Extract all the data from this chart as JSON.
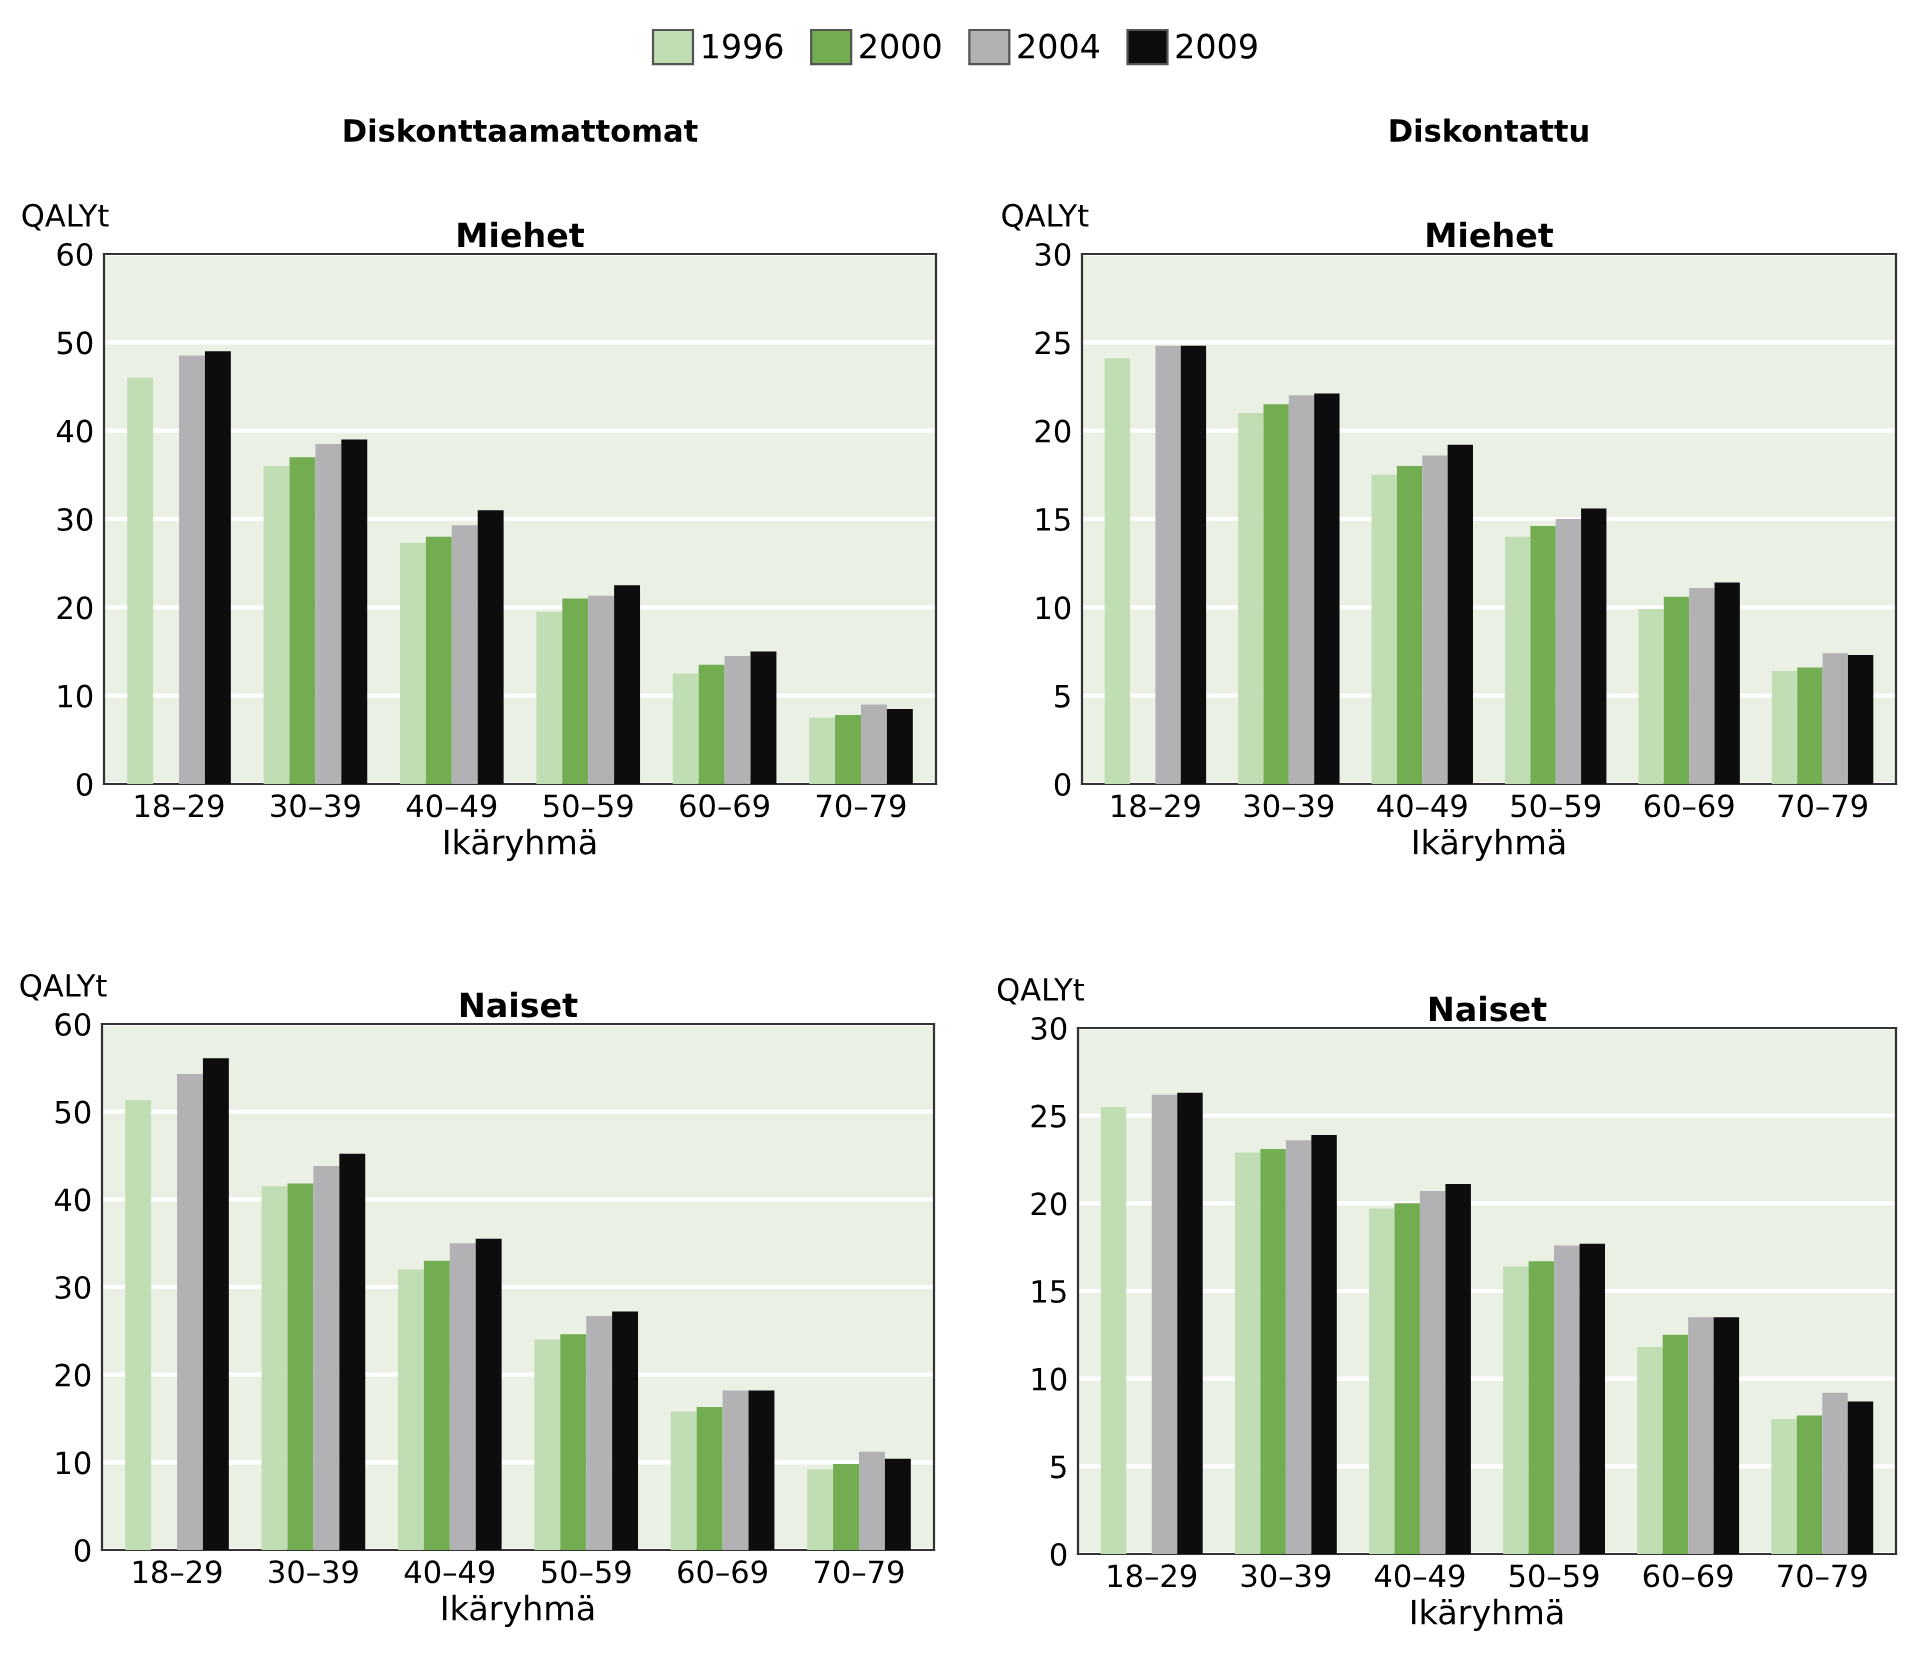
{
  "chart_data": [
    {
      "type": "bar",
      "title": "Diskonttaamattomat",
      "subtitle": "Miehet",
      "ylabel": "QALYt",
      "xlabel": "Ikäryhmä",
      "categories": [
        "18–29",
        "30–39",
        "40–49",
        "50–59",
        "60–69",
        "70–79"
      ],
      "ylim": [
        0,
        60
      ],
      "yticks": [
        0,
        10,
        20,
        30,
        40,
        50,
        60
      ],
      "grid": "y",
      "legend": "top",
      "series": [
        {
          "name": "1996",
          "color": "#c0ddb3",
          "values": [
            46,
            36,
            27.3,
            19.5,
            12.5,
            7.5
          ]
        },
        {
          "name": "2000",
          "color": "#72ad52",
          "values": [
            null,
            37,
            28,
            21,
            13.5,
            7.8
          ]
        },
        {
          "name": "2004",
          "color": "#b2b2b4",
          "values": [
            48.5,
            38.5,
            29.3,
            21.3,
            14.5,
            9
          ]
        },
        {
          "name": "2009",
          "color": "#0d0d0d",
          "values": [
            49,
            39,
            31,
            22.5,
            15,
            8.5
          ]
        }
      ]
    },
    {
      "type": "bar",
      "title": "Diskontattu",
      "subtitle": "Miehet",
      "ylabel": "QALYt",
      "xlabel": "Ikäryhmä",
      "categories": [
        "18–29",
        "30–39",
        "40–49",
        "50–59",
        "60–69",
        "70–79"
      ],
      "ylim": [
        0,
        30
      ],
      "yticks": [
        0,
        5,
        10,
        15,
        20,
        25,
        30
      ],
      "grid": "y",
      "series": [
        {
          "name": "1996",
          "color": "#c0ddb3",
          "values": [
            24.1,
            21,
            17.5,
            14,
            9.9,
            6.4
          ]
        },
        {
          "name": "2000",
          "color": "#72ad52",
          "values": [
            null,
            21.5,
            18,
            14.6,
            10.6,
            6.6
          ]
        },
        {
          "name": "2004",
          "color": "#b2b2b4",
          "values": [
            24.8,
            22,
            18.6,
            15,
            11.1,
            7.4
          ]
        },
        {
          "name": "2009",
          "color": "#0d0d0d",
          "values": [
            24.8,
            22.1,
            19.2,
            15.6,
            11.4,
            7.3
          ]
        }
      ]
    },
    {
      "type": "bar",
      "subtitle": "Naiset",
      "ylabel": "QALYt",
      "xlabel": "Ikäryhmä",
      "categories": [
        "18–29",
        "30–39",
        "40–49",
        "50–59",
        "60–69",
        "70–79"
      ],
      "ylim": [
        0,
        60
      ],
      "yticks": [
        0,
        10,
        20,
        30,
        40,
        50,
        60
      ],
      "grid": "y",
      "series": [
        {
          "name": "1996",
          "color": "#c0ddb3",
          "values": [
            51.3,
            41.5,
            32,
            24,
            15.8,
            9.2
          ]
        },
        {
          "name": "2000",
          "color": "#72ad52",
          "values": [
            null,
            41.8,
            33,
            24.6,
            16.3,
            9.8
          ]
        },
        {
          "name": "2004",
          "color": "#b2b2b4",
          "values": [
            54.3,
            43.8,
            35,
            26.7,
            18.2,
            11.2
          ]
        },
        {
          "name": "2009",
          "color": "#0d0d0d",
          "values": [
            56.1,
            45.2,
            35.5,
            27.2,
            18.2,
            10.4
          ]
        }
      ]
    },
    {
      "type": "bar",
      "subtitle": "Naiset",
      "ylabel": "QALYt",
      "xlabel": "Ikäryhmä",
      "categories": [
        "18–29",
        "30–39",
        "40–49",
        "50–59",
        "60–69",
        "70–79"
      ],
      "ylim": [
        0,
        30
      ],
      "yticks": [
        0,
        5,
        10,
        15,
        20,
        25,
        30
      ],
      "grid": "y",
      "series": [
        {
          "name": "1996",
          "color": "#c0ddb3",
          "values": [
            25.5,
            22.9,
            19.7,
            16.4,
            11.8,
            7.7
          ]
        },
        {
          "name": "2000",
          "color": "#72ad52",
          "values": [
            null,
            23.1,
            20,
            16.7,
            12.5,
            7.9
          ]
        },
        {
          "name": "2004",
          "color": "#b2b2b4",
          "values": [
            26.2,
            23.6,
            20.7,
            17.6,
            13.5,
            9.2
          ]
        },
        {
          "name": "2009",
          "color": "#0d0d0d",
          "values": [
            26.3,
            23.9,
            21.1,
            17.7,
            13.5,
            8.7
          ]
        }
      ]
    }
  ]
}
